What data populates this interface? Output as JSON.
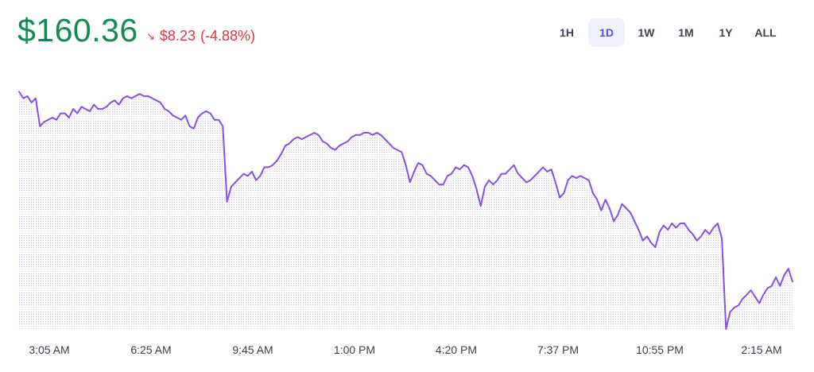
{
  "header": {
    "price": "$160.36",
    "change_arrow": "↘",
    "change_amount": "$8.23",
    "change_percent": "(-4.88%)"
  },
  "ranges": [
    "1H",
    "1D",
    "1W",
    "1M",
    "1Y",
    "ALL"
  ],
  "active_range": "1D",
  "colors": {
    "price": "#138a53",
    "change": "#d43a45",
    "line": "#8a4fe0",
    "fill_dots": "#d2c4f2",
    "active_range_bg": "#eef0fb",
    "active_range_text": "#5b4fd9"
  },
  "chart_data": {
    "type": "line",
    "title": "",
    "xlabel": "",
    "ylabel": "",
    "grid": false,
    "x_tick_labels": [
      "3:05 AM",
      "6:25 AM",
      "9:45 AM",
      "1:00 PM",
      "4:20 PM",
      "7:37 PM",
      "10:55 PM",
      "2:15 AM"
    ],
    "ylim": [
      158.0,
      169.2
    ],
    "series": [
      {
        "values": [
          169.0,
          168.7,
          168.8,
          168.5,
          168.7,
          167.4,
          167.6,
          167.7,
          167.8,
          167.7,
          168.0,
          168.0,
          167.8,
          168.2,
          168.0,
          168.3,
          168.2,
          168.1,
          168.4,
          168.2,
          168.2,
          168.3,
          168.5,
          168.6,
          168.4,
          168.7,
          168.8,
          168.7,
          168.8,
          168.9,
          168.8,
          168.8,
          168.7,
          168.6,
          168.5,
          168.2,
          168.1,
          167.9,
          167.8,
          167.7,
          167.9,
          167.4,
          167.3,
          167.8,
          168.0,
          168.1,
          168.0,
          167.7,
          167.7,
          167.4,
          163.9,
          164.6,
          164.8,
          165.0,
          165.2,
          165.1,
          165.3,
          164.9,
          165.1,
          165.5,
          165.5,
          165.6,
          165.8,
          166.1,
          166.5,
          166.6,
          166.8,
          166.9,
          166.8,
          166.9,
          167.0,
          167.1,
          167.0,
          166.7,
          166.6,
          166.4,
          166.3,
          166.5,
          166.6,
          166.7,
          166.9,
          167.0,
          167.0,
          167.1,
          167.1,
          167.0,
          167.1,
          167.0,
          166.8,
          166.6,
          166.4,
          166.3,
          166.2,
          165.6,
          164.8,
          165.3,
          165.7,
          165.6,
          165.2,
          165.1,
          164.9,
          164.7,
          164.7,
          165.1,
          165.2,
          165.5,
          165.4,
          165.6,
          165.5,
          165.1,
          164.5,
          163.7,
          164.6,
          164.9,
          164.7,
          164.9,
          165.2,
          165.2,
          165.4,
          165.6,
          165.2,
          165.0,
          164.8,
          164.9,
          165.1,
          165.3,
          165.5,
          165.3,
          165.4,
          164.8,
          164.1,
          164.3,
          164.9,
          165.1,
          165.0,
          165.1,
          165.0,
          164.9,
          164.3,
          164.0,
          163.5,
          164.0,
          163.6,
          163.0,
          163.3,
          163.8,
          163.6,
          163.4,
          163.0,
          162.6,
          162.1,
          162.3,
          162.0,
          161.8,
          162.5,
          162.8,
          162.6,
          162.9,
          162.7,
          162.9,
          162.9,
          162.6,
          162.4,
          162.1,
          162.3,
          162.6,
          162.4,
          162.7,
          162.9,
          162.2,
          158.0,
          158.8,
          159.0,
          159.1,
          159.4,
          159.6,
          159.8,
          159.5,
          159.2,
          159.6,
          159.9,
          160.0,
          160.4,
          160.0,
          160.5,
          160.8,
          160.2
        ]
      }
    ]
  }
}
